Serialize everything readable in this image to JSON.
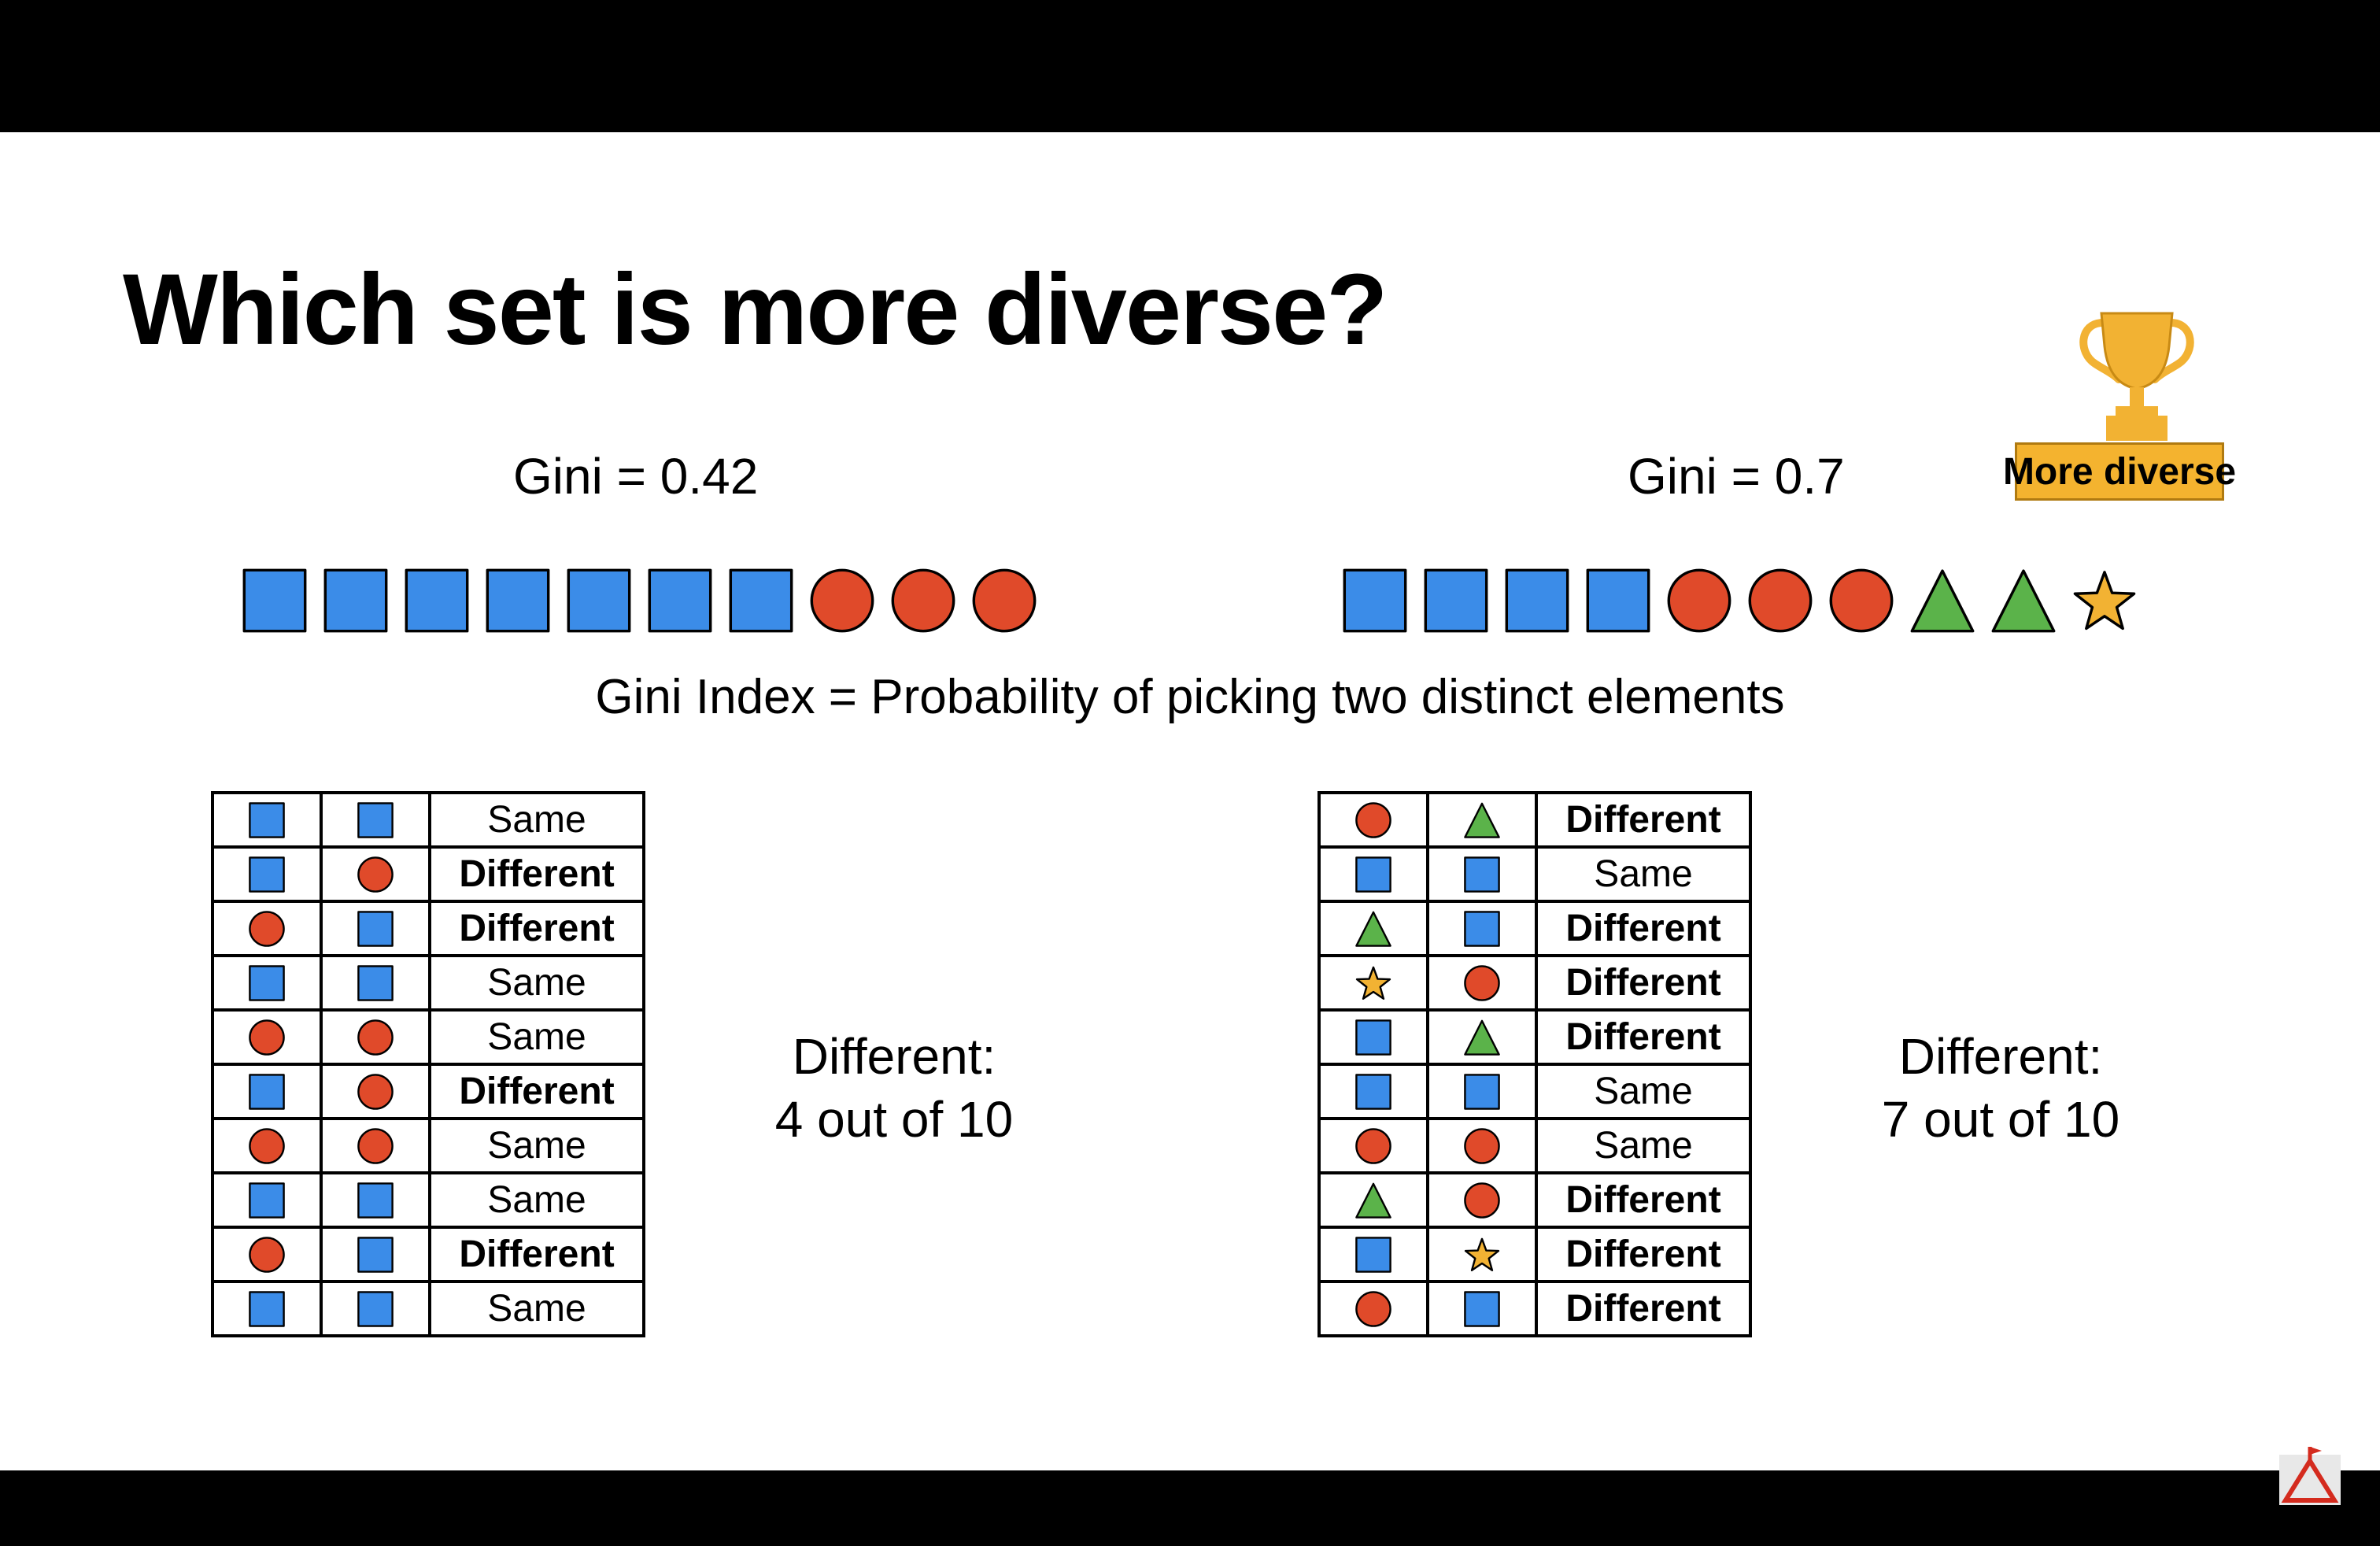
{
  "slide": {
    "title": "Which set is more diverse?",
    "index_definition": "Gini Index = Probability of picking two distinct elements",
    "winner_badge": "More diverse",
    "colors": {
      "square": "#3b8ce8",
      "circle": "#e04a2a",
      "triangle": "#5bb34a",
      "star": "#f2b233",
      "badge": "#f4b32f"
    }
  },
  "left_set": {
    "gini_label": "Gini = 0.42",
    "elements": [
      "square",
      "square",
      "square",
      "square",
      "square",
      "square",
      "square",
      "circle",
      "circle",
      "circle"
    ],
    "pairs": [
      {
        "a": "square",
        "b": "square",
        "result": "Same"
      },
      {
        "a": "square",
        "b": "circle",
        "result": "Different"
      },
      {
        "a": "circle",
        "b": "square",
        "result": "Different"
      },
      {
        "a": "square",
        "b": "square",
        "result": "Same"
      },
      {
        "a": "circle",
        "b": "circle",
        "result": "Same"
      },
      {
        "a": "square",
        "b": "circle",
        "result": "Different"
      },
      {
        "a": "circle",
        "b": "circle",
        "result": "Same"
      },
      {
        "a": "square",
        "b": "square",
        "result": "Same"
      },
      {
        "a": "circle",
        "b": "square",
        "result": "Different"
      },
      {
        "a": "square",
        "b": "square",
        "result": "Same"
      }
    ],
    "summary_line1": "Different:",
    "summary_line2": "4 out of 10"
  },
  "right_set": {
    "gini_label": "Gini = 0.7",
    "elements": [
      "square",
      "square",
      "square",
      "square",
      "circle",
      "circle",
      "circle",
      "triangle",
      "triangle",
      "star"
    ],
    "pairs": [
      {
        "a": "circle",
        "b": "triangle",
        "result": "Different"
      },
      {
        "a": "square",
        "b": "square",
        "result": "Same"
      },
      {
        "a": "triangle",
        "b": "square",
        "result": "Different"
      },
      {
        "a": "star",
        "b": "circle",
        "result": "Different"
      },
      {
        "a": "square",
        "b": "triangle",
        "result": "Different"
      },
      {
        "a": "square",
        "b": "square",
        "result": "Same"
      },
      {
        "a": "circle",
        "b": "circle",
        "result": "Same"
      },
      {
        "a": "triangle",
        "b": "circle",
        "result": "Different"
      },
      {
        "a": "square",
        "b": "star",
        "result": "Different"
      },
      {
        "a": "circle",
        "b": "square",
        "result": "Different"
      }
    ],
    "summary_line1": "Different:",
    "summary_line2": "7 out of 10"
  }
}
